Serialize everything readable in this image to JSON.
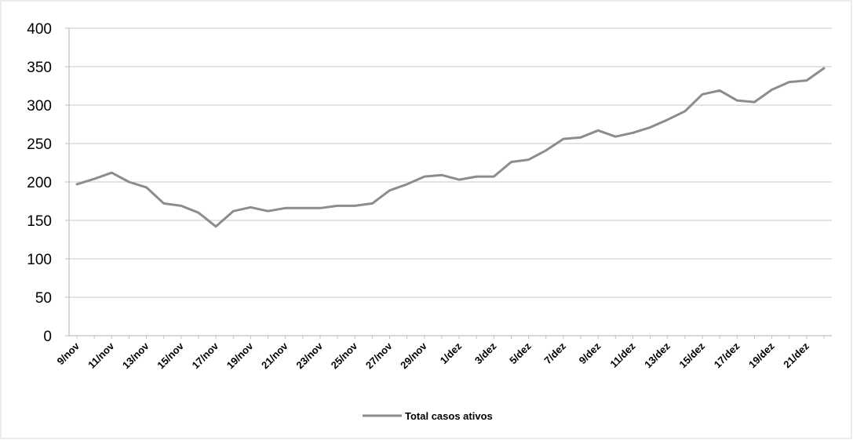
{
  "chart_data": {
    "type": "line",
    "title": "",
    "xlabel": "",
    "ylabel": "",
    "ylim": [
      0,
      400
    ],
    "yticks": [
      0,
      50,
      100,
      150,
      200,
      250,
      300,
      350,
      400
    ],
    "grid": true,
    "legend_position": "bottom",
    "colors": {
      "line": "#8c8c8c",
      "grid": "#d4d4d4",
      "axis": "#bfbfbf"
    },
    "x": [
      "9/nov",
      "10/nov",
      "11/nov",
      "12/nov",
      "13/nov",
      "14/nov",
      "15/nov",
      "16/nov",
      "17/nov",
      "18/nov",
      "19/nov",
      "20/nov",
      "21/nov",
      "22/nov",
      "23/nov",
      "24/nov",
      "25/nov",
      "26/nov",
      "27/nov",
      "28/nov",
      "29/nov",
      "30/nov",
      "1/dez",
      "2/dez",
      "3/dez",
      "4/dez",
      "5/dez",
      "6/dez",
      "7/dez",
      "8/dez",
      "9/dez",
      "10/dez",
      "11/dez",
      "12/dez",
      "13/dez",
      "14/dez",
      "15/dez",
      "16/dez",
      "17/dez",
      "18/dez",
      "19/dez",
      "20/dez",
      "21/dez",
      "22/dez"
    ],
    "xtick_labels": [
      "9/nov",
      "11/nov",
      "13/nov",
      "15/nov",
      "17/nov",
      "19/nov",
      "21/nov",
      "23/nov",
      "25/nov",
      "27/nov",
      "29/nov",
      "1/dez",
      "3/dez",
      "5/dez",
      "7/dez",
      "9/dez",
      "11/dez",
      "13/dez",
      "15/dez",
      "17/dez",
      "19/dez",
      "21/dez"
    ],
    "series": [
      {
        "name": "Total casos ativos",
        "values": [
          197,
          204,
          212,
          200,
          193,
          172,
          169,
          160,
          142,
          162,
          167,
          162,
          166,
          166,
          166,
          169,
          169,
          172,
          189,
          197,
          207,
          209,
          203,
          207,
          207,
          226,
          229,
          241,
          256,
          258,
          267,
          259,
          264,
          271,
          281,
          292,
          314,
          319,
          306,
          304,
          320,
          330,
          332,
          348
        ]
      }
    ]
  }
}
